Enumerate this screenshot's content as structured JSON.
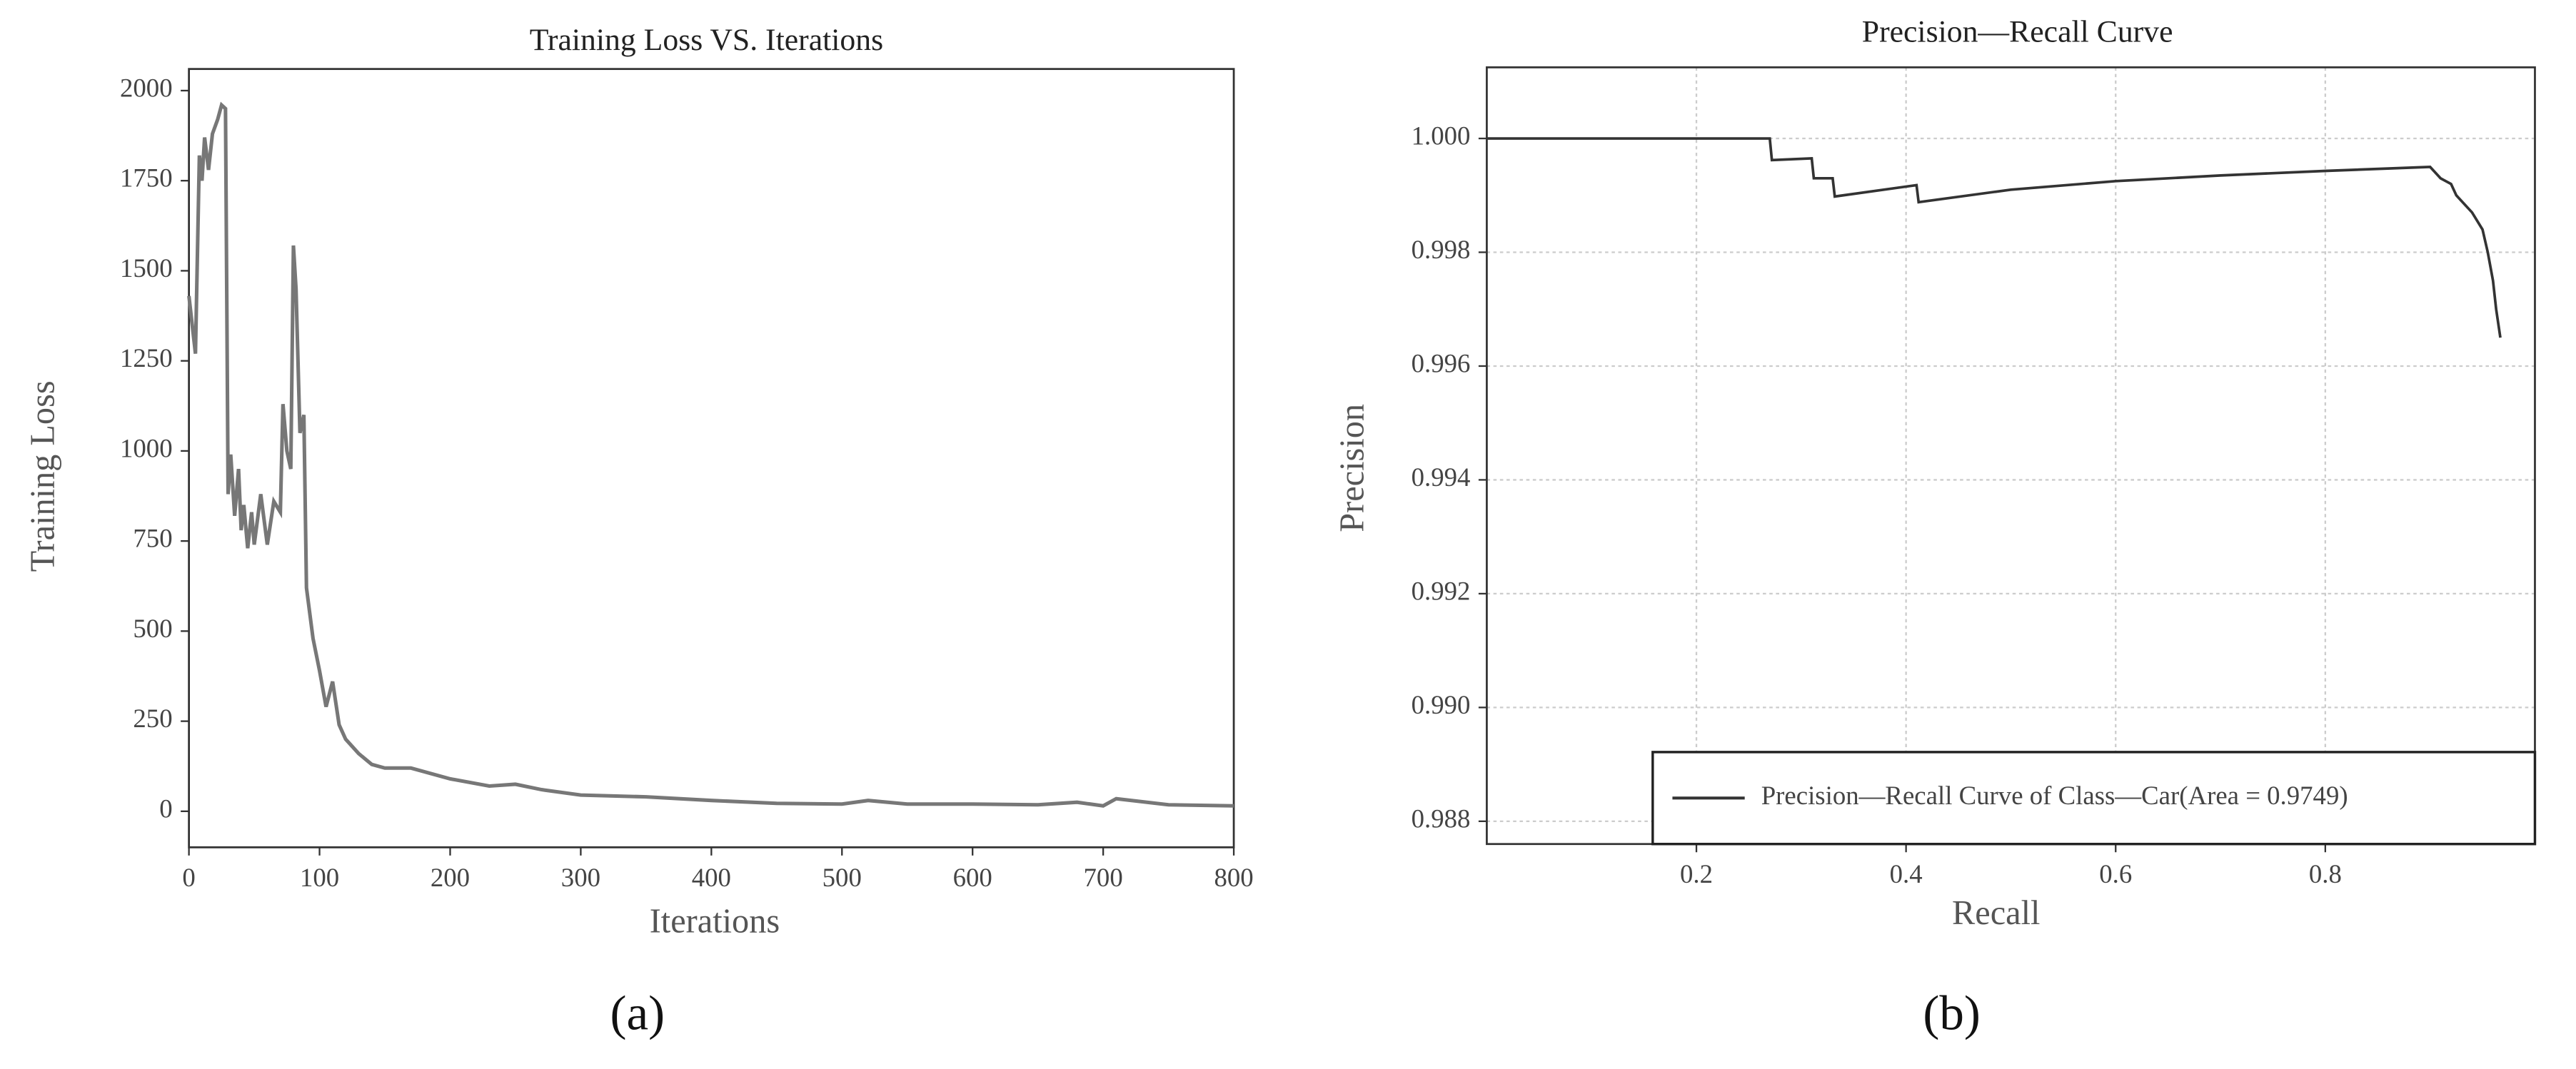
{
  "chart_data": [
    {
      "type": "line",
      "title": "Training Loss VS. Iterations",
      "xlabel": "Iterations",
      "ylabel": "Training Loss",
      "label": "(a)",
      "x": [
        0,
        5,
        8,
        10,
        12,
        15,
        18,
        22,
        25,
        28,
        30,
        32,
        35,
        38,
        40,
        42,
        45,
        48,
        50,
        55,
        60,
        65,
        70,
        72,
        75,
        78,
        80,
        82,
        85,
        88,
        90,
        95,
        100,
        105,
        110,
        115,
        120,
        130,
        140,
        150,
        170,
        200,
        230,
        250,
        270,
        300,
        350,
        400,
        450,
        500,
        520,
        550,
        600,
        650,
        680,
        700,
        710,
        750,
        800
      ],
      "values": [
        1430,
        1270,
        1820,
        1750,
        1870,
        1780,
        1880,
        1920,
        1960,
        1950,
        880,
        990,
        820,
        950,
        780,
        850,
        730,
        830,
        740,
        880,
        740,
        860,
        830,
        1130,
        1000,
        950,
        1570,
        1450,
        1050,
        1100,
        620,
        480,
        390,
        290,
        360,
        240,
        200,
        160,
        130,
        120,
        120,
        90,
        70,
        75,
        60,
        45,
        40,
        30,
        22,
        20,
        30,
        20,
        20,
        18,
        25,
        15,
        35,
        18,
        15
      ],
      "color": "#777777",
      "xlim": [
        0,
        800
      ],
      "xticks": [
        0,
        100,
        200,
        300,
        400,
        500,
        600,
        700,
        800
      ],
      "ylim": [
        -100,
        2060
      ],
      "yticks": [
        0,
        250,
        500,
        750,
        1000,
        1250,
        1500,
        1750,
        2000
      ],
      "grid": false
    },
    {
      "type": "line",
      "title": "Precision—Recall Curve",
      "xlabel": "Recall",
      "ylabel": "Precision",
      "label": "(b)",
      "series": [
        {
          "name": "Precision—Recall Curve of Class—Car(Area = 0.9749)",
          "color": "#333333",
          "x": [
            0,
            0.27,
            0.272,
            0.31,
            0.312,
            0.33,
            0.332,
            0.41,
            0.412,
            0.5,
            0.6,
            0.7,
            0.8,
            0.9,
            0.91,
            0.92,
            0.925,
            0.93,
            0.94,
            0.95,
            0.955,
            0.96,
            0.963,
            0.967
          ],
          "values": [
            1.0,
            1.0,
            0.99962,
            0.99965,
            0.9993,
            0.9993,
            0.99898,
            0.99918,
            0.99888,
            0.9991,
            0.99925,
            0.99935,
            0.99943,
            0.9995,
            0.9993,
            0.9992,
            0.999,
            0.9989,
            0.9987,
            0.9984,
            0.998,
            0.9975,
            0.997,
            0.9965
          ]
        }
      ],
      "xlim": [
        0,
        1
      ],
      "xticks": [
        0.2,
        0.4,
        0.6,
        0.8
      ],
      "ylim": [
        0.9876,
        1.00125
      ],
      "yticks": [
        0.988,
        {
          "value": 0.99,
          "label": "0.990"
        },
        0.992,
        0.994,
        0.996,
        0.998,
        {
          "value": 1,
          "label": "1.000"
        }
      ],
      "grid": true,
      "legend": "lower right"
    }
  ]
}
